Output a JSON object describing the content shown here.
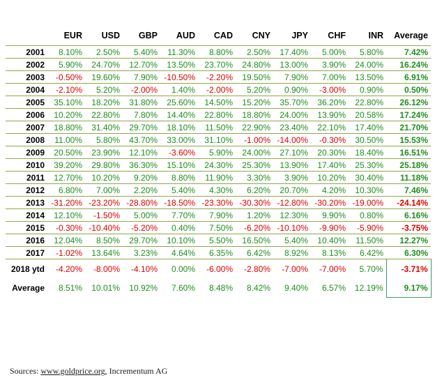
{
  "columns": [
    "EUR",
    "USD",
    "GBP",
    "AUD",
    "CAD",
    "CNY",
    "JPY",
    "CHF",
    "INR",
    "Average"
  ],
  "rows": [
    {
      "year": "2001",
      "values": [
        "8.10%",
        "2.50%",
        "5.40%",
        "11.30%",
        "8.80%",
        "2.50%",
        "17.40%",
        "5.00%",
        "5.80%",
        "7.42%"
      ]
    },
    {
      "year": "2002",
      "values": [
        "5.90%",
        "24.70%",
        "12.70%",
        "13.50%",
        "23.70%",
        "24.80%",
        "13.00%",
        "3.90%",
        "24.00%",
        "16.24%"
      ]
    },
    {
      "year": "2003",
      "values": [
        "-0.50%",
        "19.60%",
        "7.90%",
        "-10.50%",
        "-2.20%",
        "19.50%",
        "7.90%",
        "7.00%",
        "13.50%",
        "6.91%"
      ]
    },
    {
      "year": "2004",
      "values": [
        "-2.10%",
        "5.20%",
        "-2.00%",
        "1.40%",
        "-2.00%",
        "5.20%",
        "0.90%",
        "-3.00%",
        "0.90%",
        "0.50%"
      ]
    },
    {
      "year": "2005",
      "values": [
        "35.10%",
        "18.20%",
        "31.80%",
        "25.60%",
        "14.50%",
        "15.20%",
        "35.70%",
        "36.20%",
        "22.80%",
        "26.12%"
      ]
    },
    {
      "year": "2006",
      "values": [
        "10.20%",
        "22.80%",
        "7.80%",
        "14.40%",
        "22.80%",
        "18.80%",
        "24.00%",
        "13.90%",
        "20.58%",
        "17.24%"
      ]
    },
    {
      "year": "2007",
      "values": [
        "18.80%",
        "31.40%",
        "29.70%",
        "18.10%",
        "11.50%",
        "22.90%",
        "23.40%",
        "22.10%",
        "17.40%",
        "21.70%"
      ]
    },
    {
      "year": "2008",
      "values": [
        "11.00%",
        "5.80%",
        "43.70%",
        "33.00%",
        "31.10%",
        "-1.00%",
        "-14.00%",
        "-0.30%",
        "30.50%",
        "15.53%"
      ]
    },
    {
      "year": "2009",
      "values": [
        "20.50%",
        "23.90%",
        "12.10%",
        "-3.60%",
        "5.90%",
        "24.00%",
        "27.10%",
        "20.30%",
        "18.40%",
        "16.51%"
      ]
    },
    {
      "year": "2010",
      "values": [
        "39.20%",
        "29.80%",
        "36.30%",
        "15.10%",
        "24.30%",
        "25.30%",
        "13.90%",
        "17.40%",
        "25.30%",
        "25.18%"
      ]
    },
    {
      "year": "2011",
      "values": [
        "12.70%",
        "10.20%",
        "9.20%",
        "8.80%",
        "11.90%",
        "3.30%",
        "3.90%",
        "10.20%",
        "30.40%",
        "11.18%"
      ]
    },
    {
      "year": "2012",
      "values": [
        "6.80%",
        "7.00%",
        "2.20%",
        "5.40%",
        "4.30%",
        "6.20%",
        "20.70%",
        "4.20%",
        "10.30%",
        "7.46%"
      ]
    },
    {
      "year": "2013",
      "values": [
        "-31.20%",
        "-23.20%",
        "-28.80%",
        "-18.50%",
        "-23.30%",
        "-30.30%",
        "-12.80%",
        "-30.20%",
        "-19.00%",
        "-24.14%"
      ]
    },
    {
      "year": "2014",
      "values": [
        "12.10%",
        "-1.50%",
        "5.00%",
        "7.70%",
        "7.90%",
        "1.20%",
        "12.30%",
        "9.90%",
        "0.80%",
        "6.16%"
      ]
    },
    {
      "year": "2015",
      "values": [
        "-0.30%",
        "-10.40%",
        "-5.20%",
        "0.40%",
        "7.50%",
        "-6.20%",
        "-10.10%",
        "-9.90%",
        "-5.90%",
        "-3.75%"
      ]
    },
    {
      "year": "2016",
      "values": [
        "12.04%",
        "8.50%",
        "29.70%",
        "10.10%",
        "5.50%",
        "16.50%",
        "5.40%",
        "10.40%",
        "11.50%",
        "12.27%"
      ]
    },
    {
      "year": "2017",
      "values": [
        "-1.02%",
        "13.64%",
        "3.23%",
        "4.64%",
        "6.35%",
        "6.42%",
        "8.92%",
        "8.13%",
        "6.42%",
        "6.30%"
      ]
    }
  ],
  "ytd": {
    "label": "2018 ytd",
    "values": [
      "-4.20%",
      "-8.00%",
      "-4.10%",
      "0.00%",
      "-6.00%",
      "-2.80%",
      "-7.00%",
      "-7.00%",
      "5.70%",
      "-3.71%"
    ]
  },
  "average": {
    "label": "Average",
    "values": [
      "8.51%",
      "10.01%",
      "10.92%",
      "7.60%",
      "8.48%",
      "8.42%",
      "9.40%",
      "6.57%",
      "12.19%",
      "9.17%"
    ]
  },
  "source": {
    "prefix": "Sources: ",
    "link": "www.goldprice.org",
    "suffix": ", Incrementum AG"
  },
  "colors": {
    "positive": "#1e8e1e",
    "negative": "#e00000",
    "rule": "#8fa84a",
    "highlight_box": "#3a9b6b"
  }
}
